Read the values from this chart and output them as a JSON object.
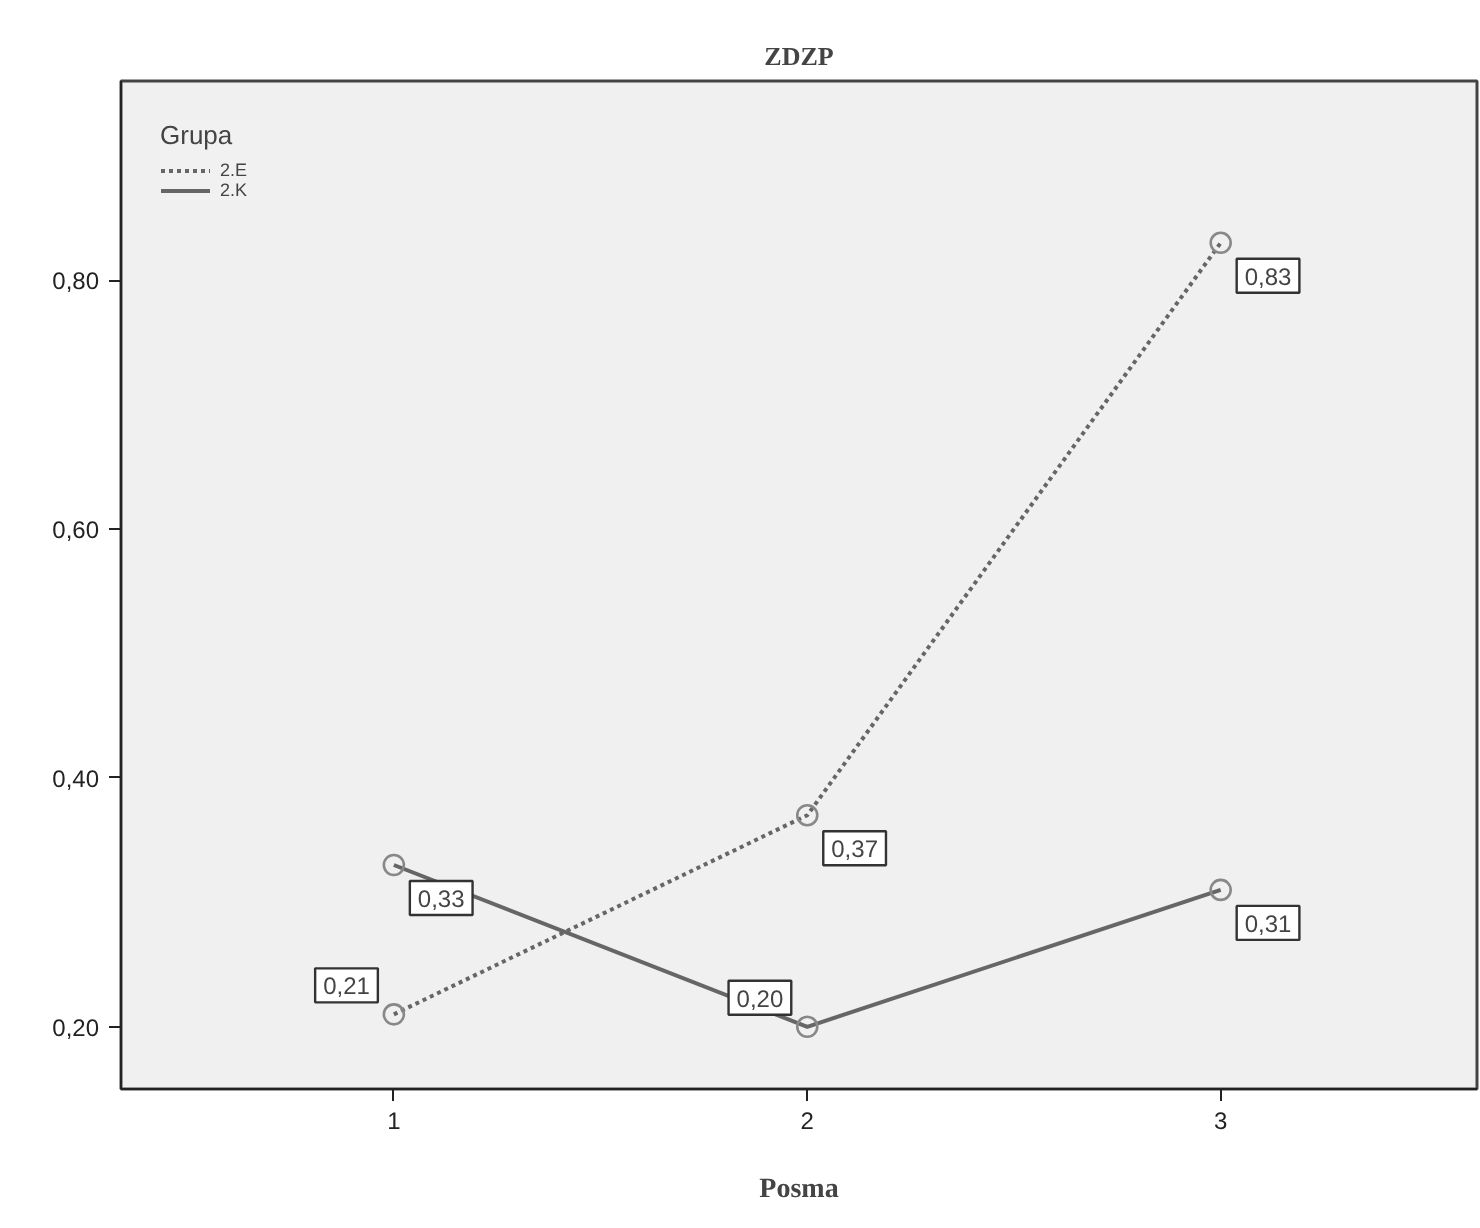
{
  "chart_data": {
    "type": "line",
    "title": "ZDZP",
    "xlabel": "Posma",
    "legend_title": "Grupa",
    "legend": "top left",
    "grid": false,
    "marker": "circle",
    "x": [
      1,
      2,
      3
    ],
    "xlim": [
      0.34,
      3.62
    ],
    "xticks": [
      1,
      2,
      3
    ],
    "ylim": [
      0.15,
      0.96
    ],
    "yticks": [
      {
        "value": 0.2,
        "label": "0,20"
      },
      {
        "value": 0.4,
        "label": "0,40"
      },
      {
        "value": 0.6,
        "label": "0,60"
      },
      {
        "value": 0.8,
        "label": "0,80"
      }
    ],
    "series": [
      {
        "name": "2.E",
        "color": "#666666",
        "line_style": "dotted",
        "values": [
          0.21,
          0.37,
          0.83
        ],
        "value_labels": [
          "0,21",
          "0,37",
          "0,83"
        ]
      },
      {
        "name": "2.K",
        "color": "#666666",
        "line_style": "solid",
        "values": [
          0.33,
          0.2,
          0.31
        ],
        "value_labels": [
          "0,33",
          "0,20",
          "0,31"
        ]
      }
    ]
  }
}
